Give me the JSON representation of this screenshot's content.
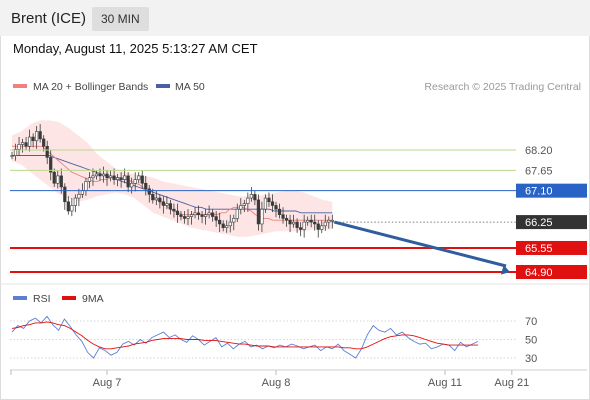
{
  "header": {
    "symbol": "Brent (ICE)",
    "interval": "30 MIN",
    "datetime": "Monday, August 11, 2025 5:13:27 AM CET"
  },
  "copyright": "Research © 2025 Trading Central",
  "colors": {
    "bollinger_band": "#fde0e0",
    "ma20": "#f08080",
    "ma50": "#4a5fa5",
    "candle": "#3a3a3a",
    "up_body": "#ffffff",
    "resistance": "#b9d88a",
    "pivot": "#2a63c6",
    "support": "#e01010",
    "current": "#333333",
    "arrow": "#2f5e9e",
    "rsi": "#5b7fd1",
    "rsi_ma": "#e01010"
  },
  "chart_data": [
    {
      "type": "candlestick",
      "legend": [
        {
          "label": "MA 20 + Bollinger Bands",
          "color": "#f08080"
        },
        {
          "label": "MA 50",
          "color": "#4a5fa5"
        }
      ],
      "levels": [
        {
          "label": "68.20",
          "value": 68.2,
          "kind": "resistance"
        },
        {
          "label": "67.65",
          "value": 67.65,
          "kind": "resistance"
        },
        {
          "label": "67.10",
          "value": 67.1,
          "kind": "pivot"
        },
        {
          "label": "66.25",
          "value": 66.25,
          "kind": "current"
        },
        {
          "label": "65.55",
          "value": 65.55,
          "kind": "support"
        },
        {
          "label": "64.90",
          "value": 64.9,
          "kind": "support"
        }
      ],
      "x_ticks": [
        {
          "label": "Aug 7",
          "index": 27
        },
        {
          "label": "Aug 8",
          "index": 75
        },
        {
          "label": "Aug 11",
          "index": 123
        },
        {
          "label": "Aug 21",
          "index": 142
        }
      ],
      "projection": {
        "from": 66.25,
        "to": 64.9
      },
      "close": [
        68.05,
        68.22,
        68.35,
        68.4,
        68.3,
        68.55,
        68.45,
        68.7,
        68.5,
        68.3,
        68.0,
        67.6,
        67.3,
        67.5,
        67.2,
        66.8,
        66.55,
        66.7,
        66.9,
        67.0,
        67.1,
        67.35,
        67.45,
        67.5,
        67.55,
        67.5,
        67.55,
        67.45,
        67.5,
        67.4,
        67.45,
        67.4,
        67.5,
        67.2,
        67.3,
        67.4,
        67.5,
        67.3,
        67.15,
        67.0,
        66.85,
        66.9,
        66.8,
        66.7,
        66.75,
        66.6,
        66.55,
        66.45,
        66.4,
        66.35,
        66.4,
        66.45,
        66.5,
        66.45,
        66.4,
        66.45,
        66.5,
        66.4,
        66.3,
        66.2,
        66.1,
        66.15,
        66.25,
        66.35,
        66.6,
        66.7,
        66.75,
        66.9,
        67.0,
        66.85,
        66.2,
        66.6,
        66.9,
        66.8,
        66.7,
        66.6,
        66.45,
        66.35,
        66.3,
        66.2,
        66.25,
        66.1,
        66.05,
        66.25,
        66.3,
        66.25,
        66.2,
        66.05,
        66.15,
        66.25,
        66.3,
        66.3
      ],
      "ma20": [
        68.3,
        68.3,
        68.3,
        68.3,
        68.3,
        68.3,
        68.3,
        68.3,
        68.2,
        68.1,
        68.0,
        67.9,
        67.8,
        67.7,
        67.6,
        67.55,
        67.5,
        67.45,
        67.4,
        67.35,
        67.35,
        67.4,
        67.4,
        67.45,
        67.45,
        67.45,
        67.4,
        67.4,
        67.35,
        67.3,
        67.25,
        67.15,
        67.05,
        66.95,
        66.85,
        66.75,
        66.7,
        66.6,
        66.55,
        66.5,
        66.45,
        66.45,
        66.45,
        66.45,
        66.45,
        66.45,
        66.45,
        66.45,
        66.45,
        66.5,
        66.5,
        66.6,
        66.65,
        66.65,
        66.65,
        66.6,
        66.55,
        66.45,
        66.4,
        66.35,
        66.35,
        66.3,
        66.3,
        66.3,
        66.3,
        66.3,
        66.3,
        66.3,
        66.3,
        66.3,
        66.3,
        66.3,
        66.3,
        66.3,
        66.3,
        66.3
      ],
      "ma50": [
        68.05,
        68.05,
        68.05,
        68.05,
        68.05,
        68.05,
        68.05,
        68.05,
        68.0,
        67.95,
        67.9,
        67.85,
        67.8,
        67.75,
        67.7,
        67.65,
        67.6,
        67.55,
        67.5,
        67.45,
        67.4,
        67.35,
        67.3,
        67.25,
        67.2,
        67.15,
        67.1,
        67.05,
        67.0,
        66.95,
        66.9,
        66.85,
        66.8,
        66.75,
        66.7,
        66.65,
        66.65,
        66.6,
        66.6,
        66.6,
        66.6,
        66.6,
        66.6,
        66.6,
        66.6,
        66.6,
        66.6,
        66.6,
        66.6,
        66.6,
        66.55,
        66.55,
        66.55,
        66.55,
        66.55,
        66.5,
        66.5,
        66.5,
        66.5,
        66.5,
        66.5,
        66.5
      ],
      "bb_upper": [
        68.6,
        68.7,
        68.9,
        69.0,
        69.0,
        68.95,
        68.8,
        68.6,
        68.4,
        68.1,
        67.9,
        67.7,
        67.6,
        67.55,
        67.5,
        67.45,
        67.35,
        67.3,
        67.25,
        67.2,
        67.15,
        67.1,
        67.05,
        67.0,
        66.95,
        66.95,
        66.95,
        67.0,
        67.05,
        67.1,
        67.1,
        67.05,
        66.95,
        66.85,
        66.8
      ],
      "bb_lower": [
        67.9,
        67.8,
        67.6,
        67.4,
        67.2,
        67.0,
        66.9,
        66.8,
        66.85,
        66.95,
        67.0,
        67.05,
        67.0,
        66.9,
        66.7,
        66.5,
        66.4,
        66.3,
        66.2,
        66.1,
        66.05,
        66.0,
        65.95,
        65.9,
        65.85,
        65.85,
        65.9,
        65.95,
        66.0,
        66.0,
        66.0,
        66.0,
        66.05,
        66.05,
        66.05
      ]
    },
    {
      "type": "line",
      "legend": [
        {
          "label": "RSI",
          "color": "#5b7fd1"
        },
        {
          "label": "9MA",
          "color": "#e01010"
        }
      ],
      "y_ticks": [
        {
          "label": "70",
          "value": 70
        },
        {
          "label": "50",
          "value": 50
        },
        {
          "label": "30",
          "value": 30
        }
      ],
      "rsi": [
        58,
        65,
        62,
        70,
        73,
        68,
        75,
        66,
        60,
        72,
        64,
        55,
        48,
        36,
        30,
        41,
        38,
        33,
        36,
        45,
        48,
        44,
        50,
        46,
        52,
        55,
        58,
        52,
        55,
        50,
        47,
        54,
        50,
        44,
        48,
        52,
        42,
        46,
        40,
        45,
        48,
        42,
        44,
        40,
        43,
        41,
        44,
        42,
        45,
        43,
        40,
        42,
        44,
        38,
        42,
        40,
        45,
        38,
        34,
        30,
        40,
        55,
        65,
        60,
        58,
        62,
        55,
        58,
        52,
        48,
        45,
        46,
        40,
        42,
        45,
        44,
        38,
        47,
        42,
        45,
        48
      ],
      "rsi_ma": [
        62,
        63,
        65,
        66,
        68,
        68,
        69,
        68,
        66,
        65,
        62,
        58,
        54,
        49,
        45,
        42,
        40,
        40,
        41,
        42,
        43,
        45,
        46,
        47,
        49,
        50,
        51,
        51,
        51,
        51,
        50,
        50,
        50,
        49,
        49,
        49,
        48,
        47,
        46,
        45,
        45,
        44,
        43,
        43,
        43,
        42,
        42,
        42,
        42,
        42,
        42,
        42,
        42,
        42,
        42,
        42,
        42,
        41,
        41,
        40,
        40,
        42,
        45,
        48,
        51,
        53,
        54,
        55,
        55,
        54,
        52,
        50,
        48,
        46,
        45,
        44,
        44,
        44,
        44,
        44,
        44
      ]
    }
  ]
}
